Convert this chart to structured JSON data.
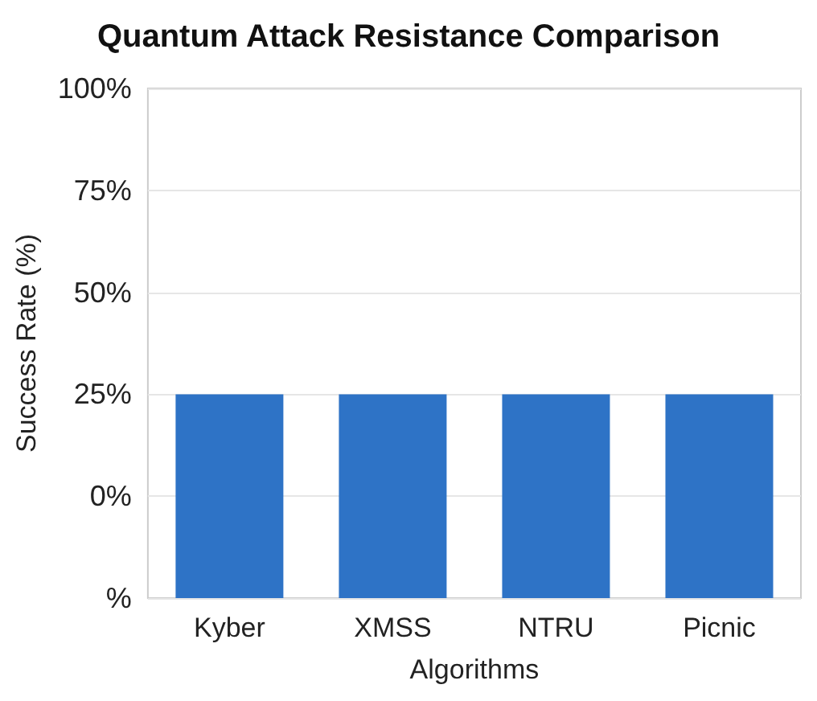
{
  "chart_data": {
    "type": "bar",
    "title": "Quantum Attack Resistance Comparison",
    "xlabel": "Algorithms",
    "ylabel": "Success Rate (%)",
    "categories": [
      "Kyber",
      "XMSS",
      "NTRU",
      "Picnic"
    ],
    "values": [
      50,
      50,
      50,
      50
    ],
    "base": [
      -25,
      -25,
      -25,
      -25
    ],
    "color": "#2e73c6",
    "ylim": [
      -25,
      100
    ],
    "yticks": [
      {
        "value": -25,
        "label": "%"
      },
      {
        "value": 0,
        "label": "0%"
      },
      {
        "value": 25,
        "label": "25%"
      },
      {
        "value": 50,
        "label": "50%"
      },
      {
        "value": 75,
        "label": "75%"
      },
      {
        "value": 100,
        "label": "100%"
      }
    ],
    "grid": "y"
  }
}
